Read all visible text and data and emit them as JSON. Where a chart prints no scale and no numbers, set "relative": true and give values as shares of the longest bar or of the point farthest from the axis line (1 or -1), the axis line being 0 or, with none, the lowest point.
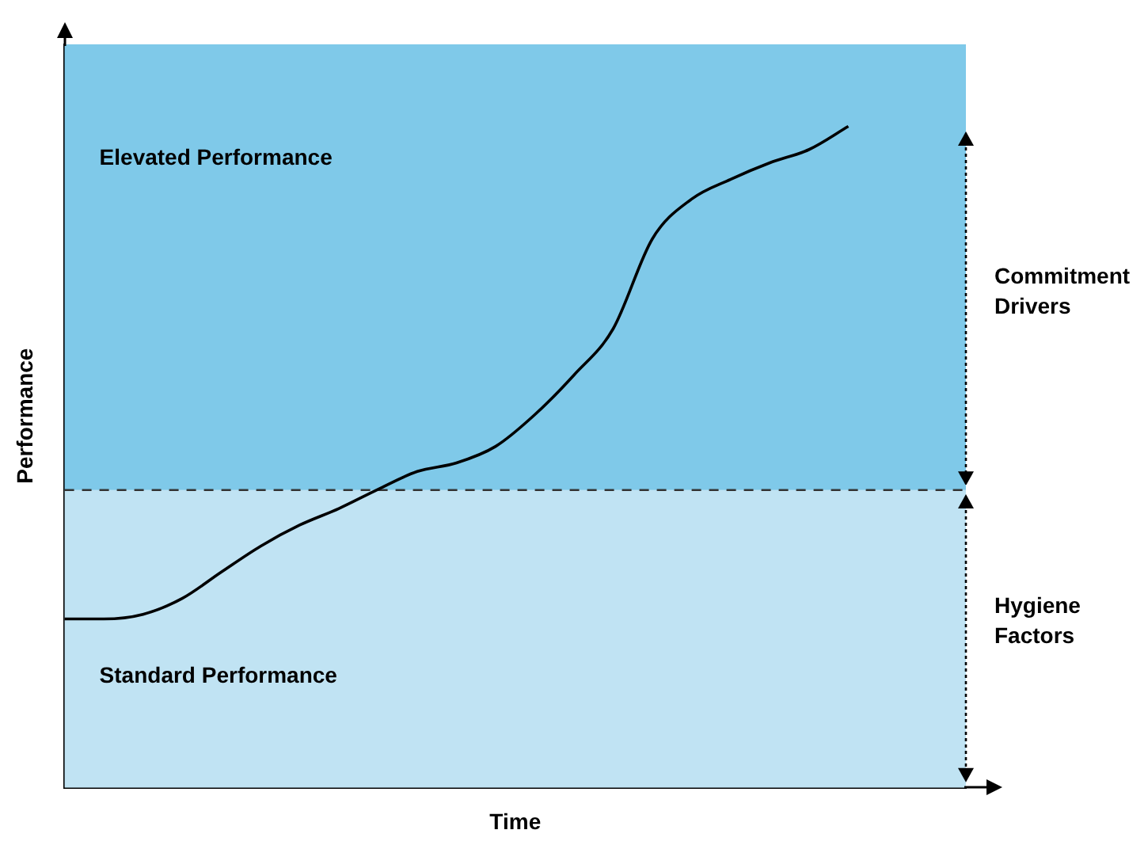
{
  "chart_data": {
    "type": "line",
    "relative": true,
    "xlabel": "Time",
    "ylabel": "Performance",
    "categories": [
      null,
      null,
      null,
      null,
      null,
      null,
      null,
      null,
      null,
      null,
      null,
      null,
      null,
      null,
      null,
      null,
      null,
      null,
      null,
      null,
      null,
      null,
      null,
      null
    ],
    "series": [
      {
        "color": "#000000",
        "values": [
          0.255,
          0.255,
          0.262,
          0.286,
          0.326,
          0.365,
          0.397,
          0.422,
          0.451,
          0.478,
          0.491,
          0.516,
          0.564,
          0.624,
          0.694,
          0.83,
          0.89,
          0.92,
          0.945,
          0.965,
          1.0,
          null,
          null,
          null
        ]
      }
    ],
    "bands": [
      {
        "axis": "y",
        "from": 0,
        "to": 0.45,
        "label": "Standard Performance",
        "color": "#c0e3f3"
      },
      {
        "axis": "y",
        "from": 0.45,
        "to": 1.124,
        "label": "Elevated Performance",
        "color": "#7fc9e9"
      }
    ],
    "ref_lines": [
      {
        "axis": "y",
        "value": 0.45,
        "color": "#333333",
        "line_style": "dashed"
      }
    ],
    "annotations": [
      "Hygiene Factors",
      "Commitment Drivers"
    ],
    "tick_labels": false,
    "grid": false,
    "legend": false,
    "marker": "none",
    "line_style": "solid"
  }
}
